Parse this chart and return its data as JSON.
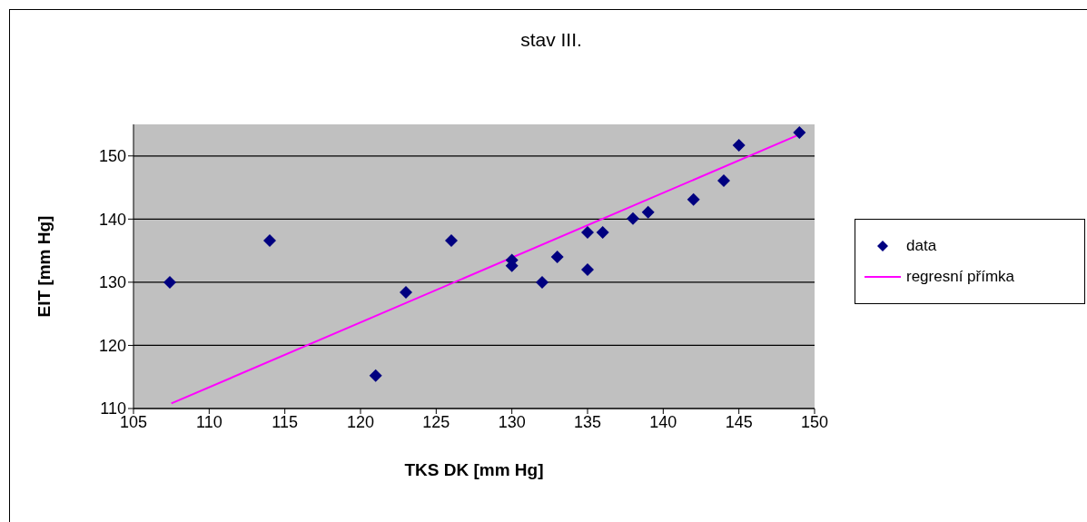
{
  "chart_data": {
    "type": "scatter",
    "title": "stav III.",
    "xlabel": "TKS DK [mm Hg]",
    "ylabel": "EIT [mm Hg]",
    "xlim": [
      105,
      150
    ],
    "xticks": [
      105,
      110,
      115,
      120,
      125,
      130,
      135,
      140,
      145,
      150
    ],
    "ylim": [
      110,
      155
    ],
    "yticks": [
      110,
      120,
      130,
      140,
      150
    ],
    "grid": "y",
    "legend": "right",
    "series": [
      {
        "name": "data",
        "marker": "diamond",
        "color": "#000080",
        "x": [
          107.4,
          114,
          121,
          123,
          126,
          130,
          130,
          132,
          133,
          135,
          135,
          136,
          138,
          139,
          142,
          144,
          145,
          149
        ],
        "values": [
          130,
          136.6,
          115.2,
          128.4,
          136.6,
          133.5,
          132.6,
          130,
          134,
          137.9,
          132,
          137.9,
          140.1,
          141.1,
          143.1,
          146.1,
          151.7,
          153.7
        ]
      },
      {
        "name": "regresní přímka",
        "type": "line",
        "marker": "none",
        "color": "#ff00ff",
        "x": [
          107.5,
          149
        ],
        "values": [
          110.8,
          153.4
        ]
      }
    ]
  }
}
